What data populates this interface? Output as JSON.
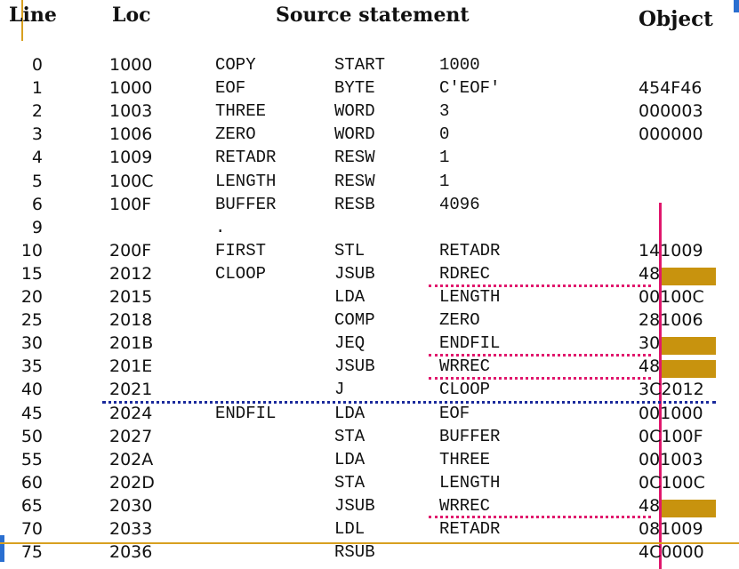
{
  "header": {
    "line": "Line",
    "loc": "Loc",
    "source": "Source statement",
    "object": "Object"
  },
  "rows": [
    {
      "line": "0",
      "loc": "1000",
      "label": "COPY",
      "opcode": "START",
      "operand": "1000",
      "object": ""
    },
    {
      "line": "1",
      "loc": "1000",
      "label": "EOF",
      "opcode": "BYTE",
      "operand": "C'EOF'",
      "object": "454F46"
    },
    {
      "line": "2",
      "loc": "1003",
      "label": "THREE",
      "opcode": "WORD",
      "operand": "3",
      "object": "000003"
    },
    {
      "line": "3",
      "loc": "1006",
      "label": "ZERO",
      "opcode": "WORD",
      "operand": "0",
      "object": "000000"
    },
    {
      "line": "4",
      "loc": "1009",
      "label": "RETADR",
      "opcode": "RESW",
      "operand": "1",
      "object": ""
    },
    {
      "line": "5",
      "loc": "100C",
      "label": "LENGTH",
      "opcode": "RESW",
      "operand": "1",
      "object": ""
    },
    {
      "line": "6",
      "loc": "100F",
      "label": "BUFFER",
      "opcode": "RESB",
      "operand": "4096",
      "object": ""
    },
    {
      "line": "9",
      "loc": "",
      "label": ".",
      "opcode": "",
      "operand": "",
      "object": ""
    },
    {
      "line": "10",
      "loc": "200F",
      "label": "FIRST",
      "opcode": "STL",
      "operand": "RETADR",
      "object": "141009"
    },
    {
      "line": "15",
      "loc": "2012",
      "label": "CLOOP",
      "opcode": "JSUB",
      "operand": "RDREC",
      "object": "48",
      "highlight": true
    },
    {
      "line": "20",
      "loc": "2015",
      "label": "",
      "opcode": "LDA",
      "operand": "LENGTH",
      "object": "00100C"
    },
    {
      "line": "25",
      "loc": "2018",
      "label": "",
      "opcode": "COMP",
      "operand": "ZERO",
      "object": "281006"
    },
    {
      "line": "30",
      "loc": "201B",
      "label": "",
      "opcode": "JEQ",
      "operand": "ENDFIL",
      "object": "30",
      "highlight": true
    },
    {
      "line": "35",
      "loc": "201E",
      "label": "",
      "opcode": "JSUB",
      "operand": "WRREC",
      "object": "48",
      "highlight": true
    },
    {
      "line": "40",
      "loc": "2021",
      "label": "",
      "opcode": "J",
      "operand": "CLOOP",
      "object": "3C2012"
    },
    {
      "line": "45",
      "loc": "2024",
      "label": "ENDFIL",
      "opcode": "LDA",
      "operand": "EOF",
      "object": "001000"
    },
    {
      "line": "50",
      "loc": "2027",
      "label": "",
      "opcode": "STA",
      "operand": "BUFFER",
      "object": "0C100F"
    },
    {
      "line": "55",
      "loc": "202A",
      "label": "",
      "opcode": "LDA",
      "operand": "THREE",
      "object": "001003"
    },
    {
      "line": "60",
      "loc": "202D",
      "label": "",
      "opcode": "STA",
      "operand": "LENGTH",
      "object": "0C100C"
    },
    {
      "line": "65",
      "loc": "2030",
      "label": "",
      "opcode": "JSUB",
      "operand": "WRREC",
      "object": "48",
      "highlight": true
    },
    {
      "line": "70",
      "loc": "2033",
      "label": "",
      "opcode": "LDL",
      "operand": "RETADR",
      "object": "081009"
    },
    {
      "line": "75",
      "loc": "2036",
      "label": "",
      "opcode": "RSUB",
      "operand": "",
      "object": "4C0000"
    }
  ],
  "colors": {
    "highlight": "#C8930E",
    "guide_red": "#e0176c",
    "guide_blue": "#1a2a9c",
    "guide_gold": "#d8a020"
  }
}
